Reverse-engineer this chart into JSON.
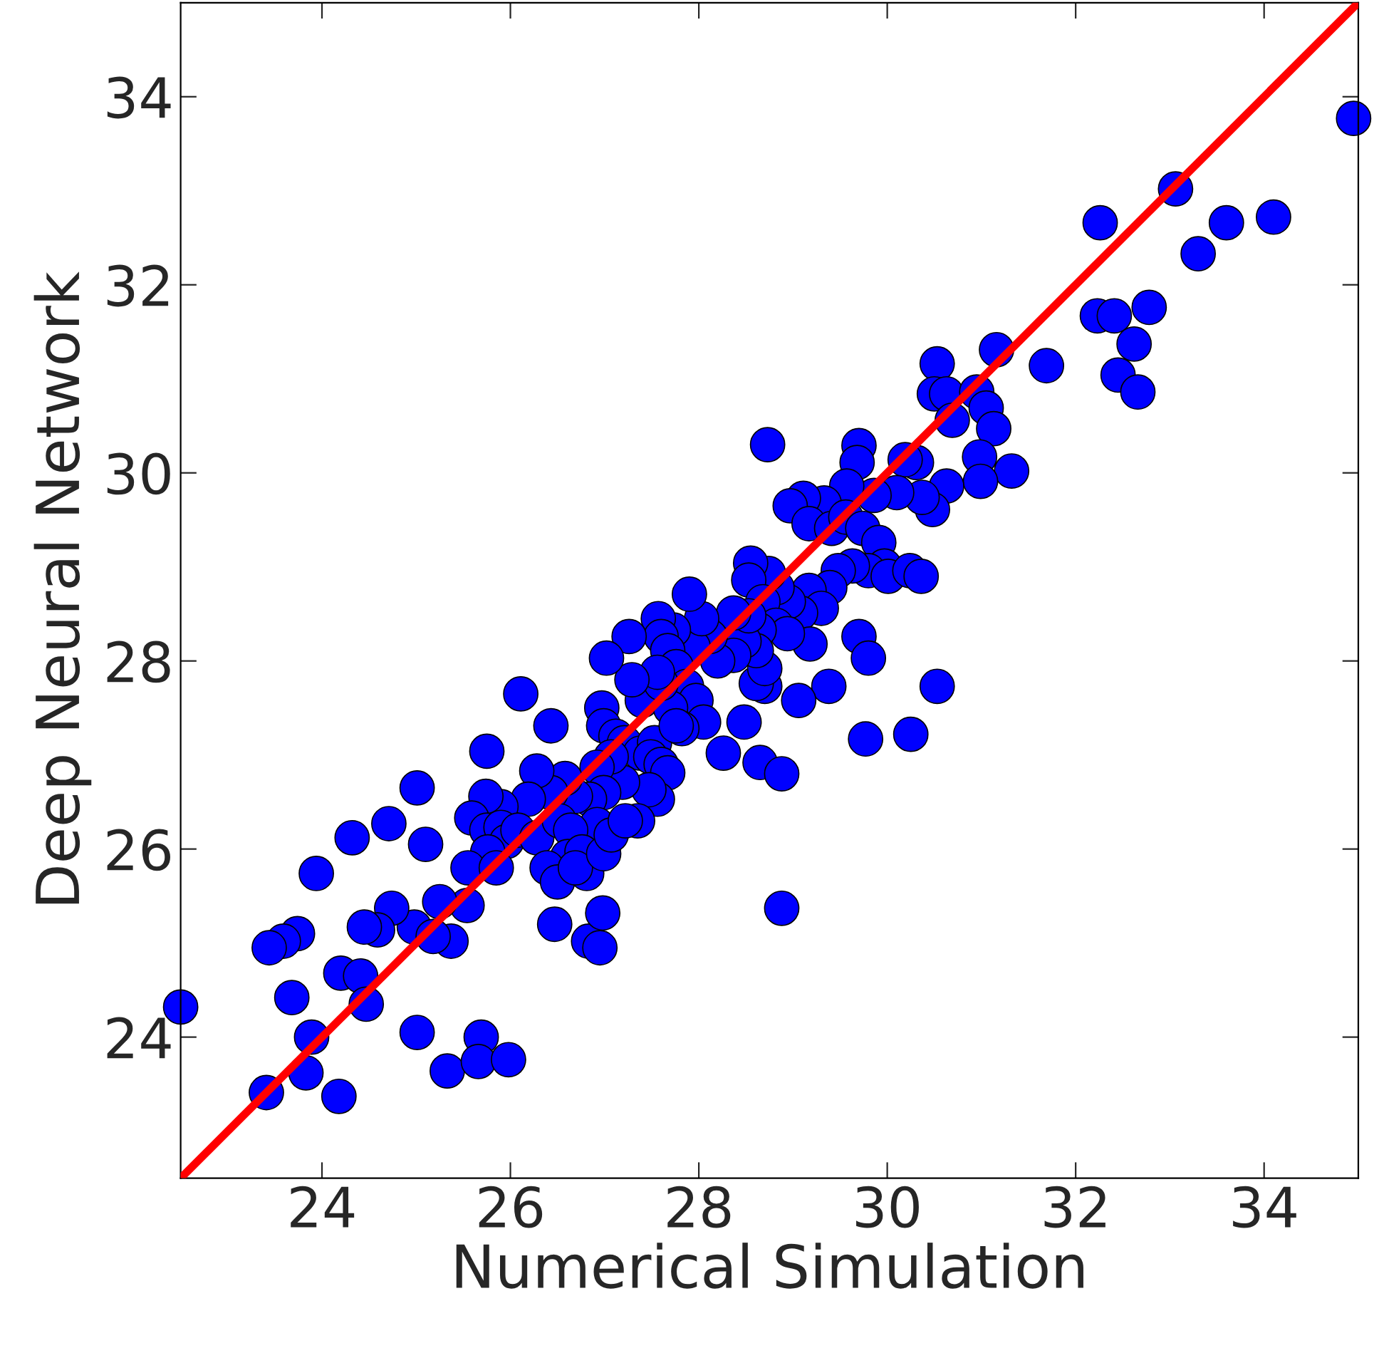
{
  "chart_data": {
    "type": "scatter",
    "xlabel": "Numerical Simulation",
    "ylabel": "Deep Neural Network",
    "xlim": [
      22.5,
      35
    ],
    "ylim": [
      22.5,
      35
    ],
    "xticks": [
      24,
      26,
      28,
      30,
      32,
      34
    ],
    "yticks": [
      24,
      26,
      28,
      30,
      32,
      34
    ],
    "grid": false,
    "marker": "circle",
    "series": [
      {
        "color": "#0000ff",
        "x": [
          22.5,
          34.95,
          33.06,
          33.6,
          33.3,
          34.1,
          32.26,
          32.23,
          32.41,
          32.78,
          32.62,
          32.45,
          32.66,
          31.69,
          31.16,
          30.53,
          30.5,
          30.63,
          30.69,
          30.95,
          31.05,
          31.13,
          31.32,
          30.98,
          30.99,
          30.63,
          30.48,
          30.37,
          30.31,
          30.19,
          30.1,
          29.86,
          29.7,
          29.68,
          29.57,
          29.33,
          29.11,
          28.97,
          29.17,
          29.41,
          29.56,
          29.74,
          29.91,
          29.97,
          29.8,
          30.01,
          30.24,
          30.36,
          29.63,
          29.48,
          29.39,
          29.17,
          29.3,
          29.08,
          28.95,
          28.83,
          28.74,
          28.55,
          28.53,
          28.68,
          28.82,
          29.18,
          28.94,
          28.64,
          28.73,
          29.7,
          29.8,
          29.77,
          30.25,
          30.53,
          29.38,
          29.06,
          28.7,
          28.61,
          28.7,
          28.61,
          28.48,
          28.53,
          28.37,
          28.37,
          28.2,
          28.12,
          27.94,
          28.03,
          27.9,
          27.73,
          27.57,
          27.6,
          27.67,
          27.76,
          27.87,
          27.97,
          28.05,
          27.82,
          27.4,
          27.7,
          28.26,
          28.48,
          28.65,
          28.88,
          28.88,
          27.6,
          27.56,
          27.29,
          27.26,
          27.02,
          26.97,
          26.99,
          27.12,
          27.21,
          27.38,
          27.53,
          27.49,
          27.76,
          27.6,
          27.67,
          27.56,
          27.47,
          27.35,
          27.19,
          27.07,
          26.92,
          26.99,
          26.84,
          26.92,
          26.69,
          26.58,
          26.43,
          26.28,
          26.19,
          26.43,
          26.11,
          25.75,
          25.9,
          25.74,
          25.59,
          25.75,
          25.9,
          25.96,
          25.76,
          25.55,
          25.85,
          26.08,
          26.28,
          26.52,
          26.64,
          26.61,
          26.76,
          26.81,
          26.39,
          26.5,
          26.69,
          26.99,
          27.07,
          27.22,
          26.47,
          26.83,
          26.95,
          26.98,
          25.54,
          25.37,
          25.25,
          25.01,
          25.1,
          24.98,
          25.18,
          24.74,
          24.71,
          24.59,
          24.45,
          24.32,
          24.2,
          24.41,
          24.47,
          23.94,
          23.74,
          23.59,
          23.44,
          23.68,
          23.89,
          23.83,
          23.41,
          24.18,
          25.01,
          25.33,
          25.69,
          25.66,
          25.98
        ],
        "values": [
          24.32,
          33.77,
          33.02,
          32.66,
          32.33,
          32.72,
          32.66,
          31.67,
          31.67,
          31.76,
          31.37,
          31.04,
          30.86,
          31.14,
          31.31,
          31.16,
          30.84,
          30.84,
          30.56,
          30.86,
          30.69,
          30.47,
          30.02,
          30.17,
          29.91,
          29.86,
          29.61,
          29.74,
          30.11,
          30.14,
          29.79,
          29.76,
          30.29,
          30.11,
          29.86,
          29.68,
          29.73,
          29.65,
          29.46,
          29.41,
          29.53,
          29.41,
          29.26,
          29.01,
          28.96,
          28.9,
          28.96,
          28.9,
          29.01,
          28.96,
          28.78,
          28.75,
          28.56,
          28.51,
          28.63,
          28.78,
          28.93,
          29.04,
          28.86,
          28.63,
          28.38,
          28.18,
          28.29,
          28.33,
          30.3,
          28.26,
          28.03,
          27.17,
          27.22,
          27.73,
          27.73,
          27.58,
          27.73,
          27.76,
          27.92,
          28.11,
          28.21,
          28.48,
          28.51,
          28.06,
          28.0,
          28.26,
          28.15,
          28.45,
          28.71,
          28.33,
          28.45,
          28.26,
          28.11,
          27.94,
          27.73,
          27.58,
          27.35,
          27.28,
          27.58,
          27.5,
          27.02,
          27.35,
          26.92,
          26.8,
          25.37,
          27.76,
          27.88,
          27.8,
          28.26,
          28.03,
          27.5,
          27.31,
          27.2,
          27.13,
          27.02,
          27.13,
          26.98,
          27.31,
          26.9,
          26.81,
          26.53,
          26.63,
          26.3,
          26.71,
          26.98,
          26.87,
          26.6,
          26.53,
          26.26,
          26.56,
          26.75,
          26.6,
          26.83,
          26.53,
          27.31,
          27.65,
          27.04,
          26.45,
          26.56,
          26.33,
          26.2,
          26.23,
          26.08,
          25.97,
          25.8,
          25.8,
          26.2,
          26.12,
          26.3,
          26.2,
          25.92,
          25.97,
          25.74,
          25.8,
          25.65,
          25.8,
          25.95,
          26.15,
          26.3,
          25.2,
          25.02,
          24.95,
          25.32,
          25.4,
          25.02,
          25.44,
          26.65,
          26.05,
          25.17,
          25.07,
          25.37,
          26.27,
          25.14,
          25.17,
          26.12,
          24.68,
          24.65,
          24.35,
          25.74,
          25.1,
          25.02,
          24.95,
          24.42,
          24.0,
          23.62,
          23.41,
          23.37,
          24.05,
          23.64,
          24.0,
          23.74,
          23.76
        ]
      },
      {
        "type": "line",
        "color": "#ff0000",
        "x": [
          22.5,
          35
        ],
        "values": [
          22.5,
          35
        ],
        "marker": "none",
        "line_style": "solid"
      }
    ]
  }
}
